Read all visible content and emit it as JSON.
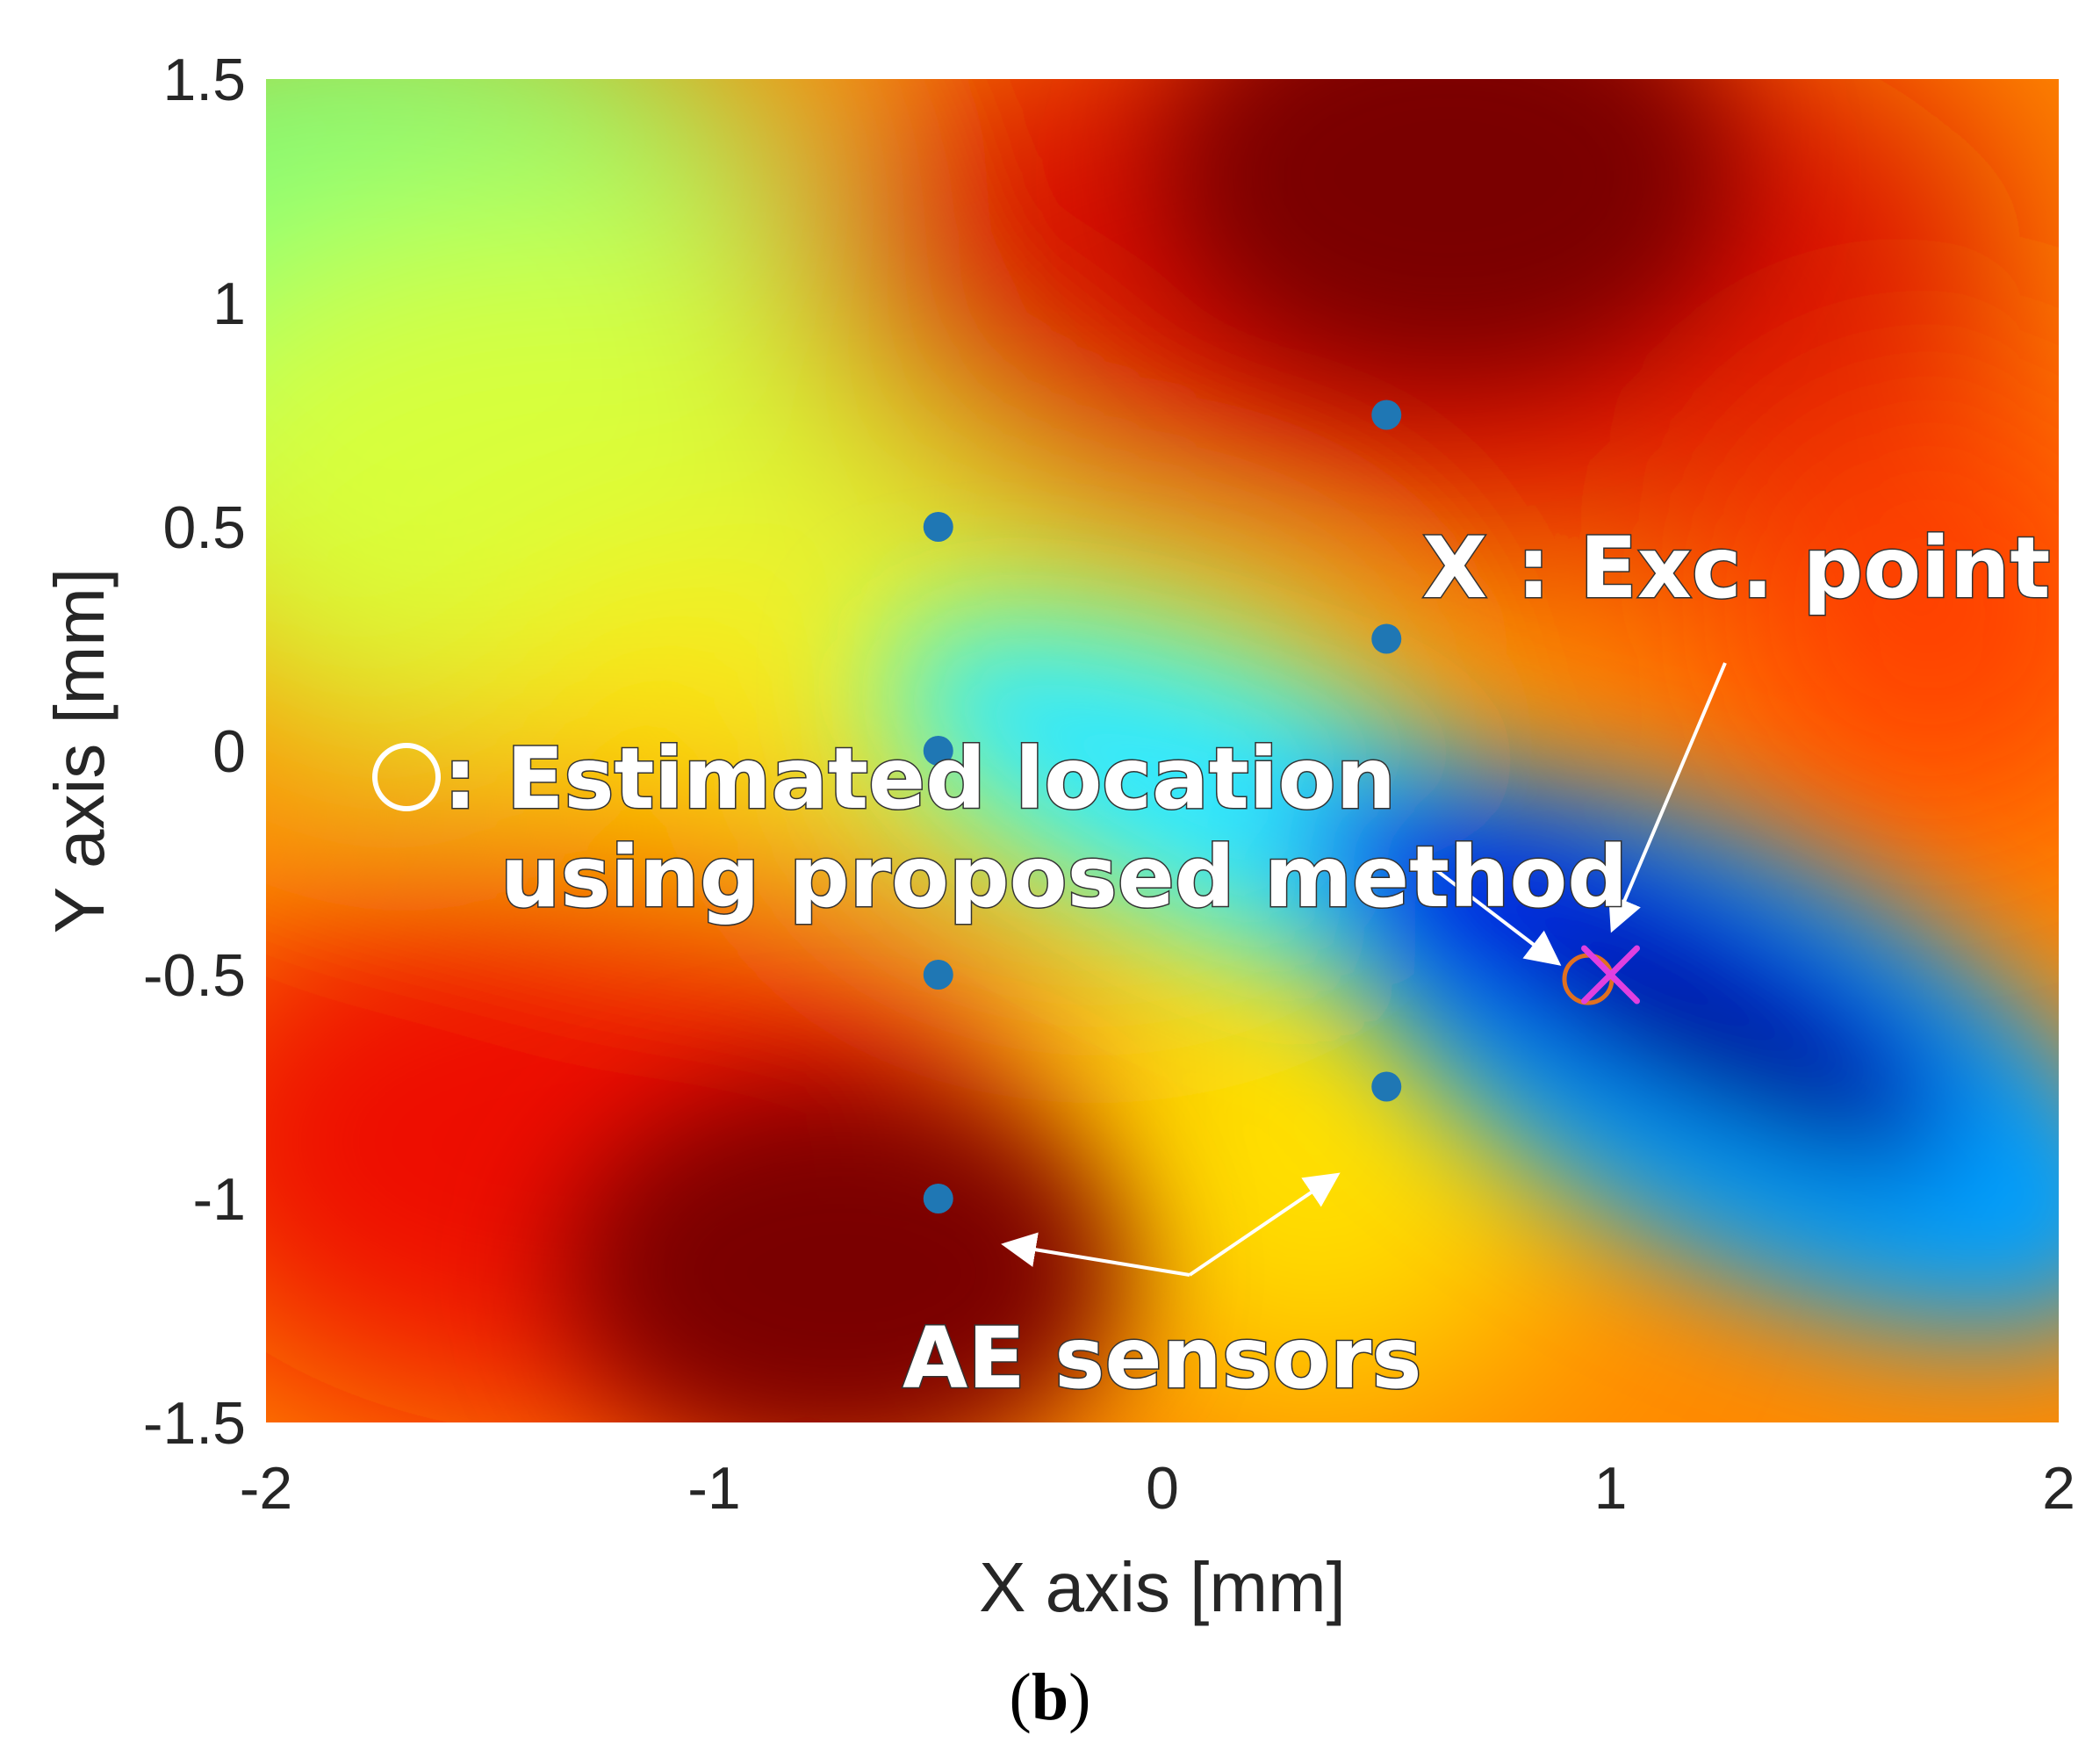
{
  "chart_data": {
    "type": "heatmap",
    "xlabel": "X axis [mm]",
    "ylabel": "Y axis [mm]",
    "xlim": [
      -2,
      2
    ],
    "ylim": [
      -1.5,
      1.5
    ],
    "xticks": [
      "-2",
      "-1",
      "0",
      "1",
      "2"
    ],
    "yticks": [
      "1.5",
      "1",
      "0.5",
      "0",
      "-0.5",
      "-1",
      "-1.5"
    ],
    "colormap": "jet",
    "sensor_color": "#1f77b4",
    "sensors": [
      {
        "x": 0.5,
        "y": 0.75
      },
      {
        "x": -0.5,
        "y": 0.5
      },
      {
        "x": 0.5,
        "y": 0.25
      },
      {
        "x": -0.5,
        "y": 0.0
      },
      {
        "x": -0.5,
        "y": -0.5
      },
      {
        "x": 0.5,
        "y": -0.75
      },
      {
        "x": -0.5,
        "y": -1.0
      }
    ],
    "excitation_point": {
      "x": 1.0,
      "y": -0.5,
      "color": "#e040e0"
    },
    "estimated_location": {
      "x": 0.95,
      "y": -0.51,
      "color": "#e07020"
    },
    "annotations": {
      "excitation": "X : Exc. point",
      "estimated_line1": ": Estimated location",
      "estimated_line2": "using proposed method",
      "sensors": "AE sensors"
    }
  },
  "caption": {
    "open": "(",
    "letter": "b",
    "close": ")"
  }
}
